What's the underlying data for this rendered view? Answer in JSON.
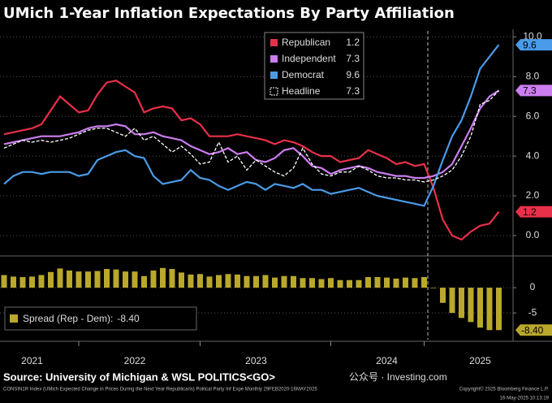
{
  "chart_data": [
    {
      "type": "line",
      "title": "UMich 1-Year Inflation Expectations By Party Affiliation",
      "ylim": [
        -0.9,
        10.3
      ],
      "yticks": [
        {
          "value": 0,
          "label": "0.0"
        },
        {
          "value": 2,
          "label": "2.0"
        },
        {
          "value": 4,
          "label": "4.0"
        },
        {
          "value": 6,
          "label": "6.0"
        },
        {
          "value": 8,
          "label": "8.0"
        },
        {
          "value": 10,
          "label": "10.0"
        }
      ],
      "grid": true,
      "legend": "top-right",
      "series": [
        {
          "name": "Republican",
          "color": "#e8304a",
          "style": "solid",
          "tag": true,
          "values": [
            5.1,
            5.2,
            5.3,
            5.4,
            5.6,
            6.3,
            7.0,
            6.6,
            6.2,
            6.3,
            7.1,
            7.7,
            7.8,
            7.5,
            7.2,
            6.2,
            6.4,
            6.5,
            6.4,
            5.8,
            5.9,
            5.6,
            5.0,
            5.0,
            5.0,
            5.1,
            5.0,
            4.9,
            4.8,
            4.6,
            4.8,
            4.7,
            4.5,
            4.2,
            4.0,
            4.0,
            3.7,
            3.8,
            3.9,
            4.3,
            4.1,
            3.9,
            3.6,
            3.7,
            3.5,
            3.6,
            2.4,
            0.8,
            0.0,
            -0.2,
            0.2,
            0.5,
            0.6,
            1.2
          ]
        },
        {
          "name": "Independent",
          "color": "#cc7ef0",
          "style": "solid",
          "tag": true,
          "values": [
            4.6,
            4.7,
            4.8,
            4.9,
            5.0,
            5.0,
            5.0,
            5.1,
            5.2,
            5.4,
            5.5,
            5.5,
            5.6,
            5.5,
            5.1,
            5.1,
            5.2,
            5.0,
            4.9,
            4.8,
            4.5,
            4.3,
            4.1,
            4.2,
            4.4,
            4.1,
            4.2,
            3.8,
            3.7,
            3.9,
            4.3,
            4.4,
            4.0,
            3.5,
            3.4,
            3.1,
            3.3,
            3.4,
            3.5,
            3.4,
            3.2,
            3.1,
            3.0,
            3.0,
            2.9,
            2.9,
            3.0,
            3.2,
            3.6,
            4.5,
            5.4,
            6.4,
            7.0,
            7.3
          ]
        },
        {
          "name": "Democrat",
          "color": "#4a9be8",
          "style": "solid",
          "tag": true,
          "values": [
            2.6,
            3.0,
            3.2,
            3.2,
            3.1,
            3.2,
            3.2,
            3.2,
            3.0,
            3.1,
            3.8,
            4.0,
            4.2,
            4.3,
            4.0,
            3.9,
            3.0,
            2.6,
            2.7,
            2.8,
            3.3,
            2.9,
            2.8,
            2.5,
            2.3,
            2.5,
            2.7,
            2.6,
            2.3,
            2.6,
            2.5,
            2.4,
            2.6,
            2.3,
            2.3,
            2.1,
            2.2,
            2.3,
            2.4,
            2.2,
            2.0,
            1.9,
            1.8,
            1.7,
            1.6,
            1.5,
            2.5,
            3.8,
            5.0,
            5.8,
            7.0,
            8.4,
            9.0,
            9.6
          ]
        },
        {
          "name": "Headline",
          "color": "#ffffff",
          "style": "dashed",
          "tag": false,
          "values": [
            4.4,
            4.6,
            4.8,
            4.7,
            4.8,
            4.7,
            4.8,
            4.9,
            5.1,
            5.3,
            5.4,
            5.4,
            5.2,
            5.0,
            5.4,
            4.8,
            5.0,
            4.6,
            4.2,
            4.5,
            4.1,
            3.6,
            3.7,
            4.7,
            3.7,
            4.0,
            3.3,
            3.8,
            3.5,
            3.2,
            3.0,
            3.4,
            4.4,
            3.6,
            3.1,
            3.0,
            3.2,
            3.2,
            3.5,
            3.3,
            3.0,
            2.9,
            2.9,
            2.8,
            2.8,
            2.7,
            2.8,
            3.0,
            3.3,
            4.0,
            5.0,
            6.6,
            6.8,
            7.3
          ]
        }
      ]
    },
    {
      "type": "bar",
      "categories": [
        null,
        null,
        null,
        "2021",
        null,
        null,
        null,
        null,
        null,
        null,
        null,
        null,
        null,
        null,
        "2022",
        null,
        null,
        null,
        null,
        null,
        null,
        null,
        null,
        null,
        null,
        null,
        null,
        "2023",
        null,
        null,
        null,
        null,
        null,
        null,
        null,
        null,
        null,
        null,
        null,
        null,
        null,
        "2024",
        null,
        null,
        null,
        null,
        null,
        null,
        null,
        null,
        null,
        "2025",
        null,
        null
      ],
      "ylim": [
        -9.8,
        5.8
      ],
      "yticks": [
        0,
        -5
      ],
      "grid": true,
      "series": [
        {
          "name": "Spread (Rep - Dem):",
          "color": "#b9a82c",
          "values": [
            2.5,
            2.2,
            2.1,
            2.2,
            2.5,
            3.1,
            3.8,
            3.4,
            3.2,
            3.2,
            3.3,
            3.7,
            3.6,
            3.2,
            3.2,
            2.3,
            3.4,
            3.9,
            3.7,
            3.0,
            2.6,
            2.7,
            2.2,
            2.5,
            2.7,
            2.6,
            2.3,
            2.3,
            2.5,
            2.0,
            2.3,
            2.3,
            1.9,
            1.9,
            1.7,
            1.9,
            1.5,
            1.5,
            1.5,
            2.1,
            2.1,
            2.0,
            1.8,
            2.0,
            1.9,
            2.1,
            -0.1,
            -3.0,
            -5.0,
            -6.0,
            -6.8,
            -7.9,
            -8.4,
            -8.4
          ],
          "value_labels": [
            null,
            null,
            null,
            null,
            null,
            null,
            null,
            null,
            null,
            null,
            null,
            null,
            null,
            null,
            null,
            null,
            null,
            null,
            null,
            null,
            null,
            null,
            null,
            null,
            null,
            null,
            null,
            null,
            null,
            null,
            null,
            null,
            null,
            null,
            null,
            null,
            null,
            null,
            null,
            null,
            null,
            null,
            null,
            null,
            null,
            null,
            null,
            null,
            null,
            null,
            null,
            null,
            null,
            "-8.40"
          ]
        }
      ]
    }
  ],
  "source": "Source: University of Michigan & WSL POLITICS<GO>",
  "footnote": "CONSIN1R Index (UMich Expected Change in Prices During the Next Year Republicans) Politcal Party Inf Expe Monthly 29FEB2020-16MAY2025",
  "copyright": "Copyright© 2025 Bloomberg Finance L.P.",
  "timestamp": "16-May-2025 10:13:19",
  "watermark": "公众号 · Investing.com"
}
